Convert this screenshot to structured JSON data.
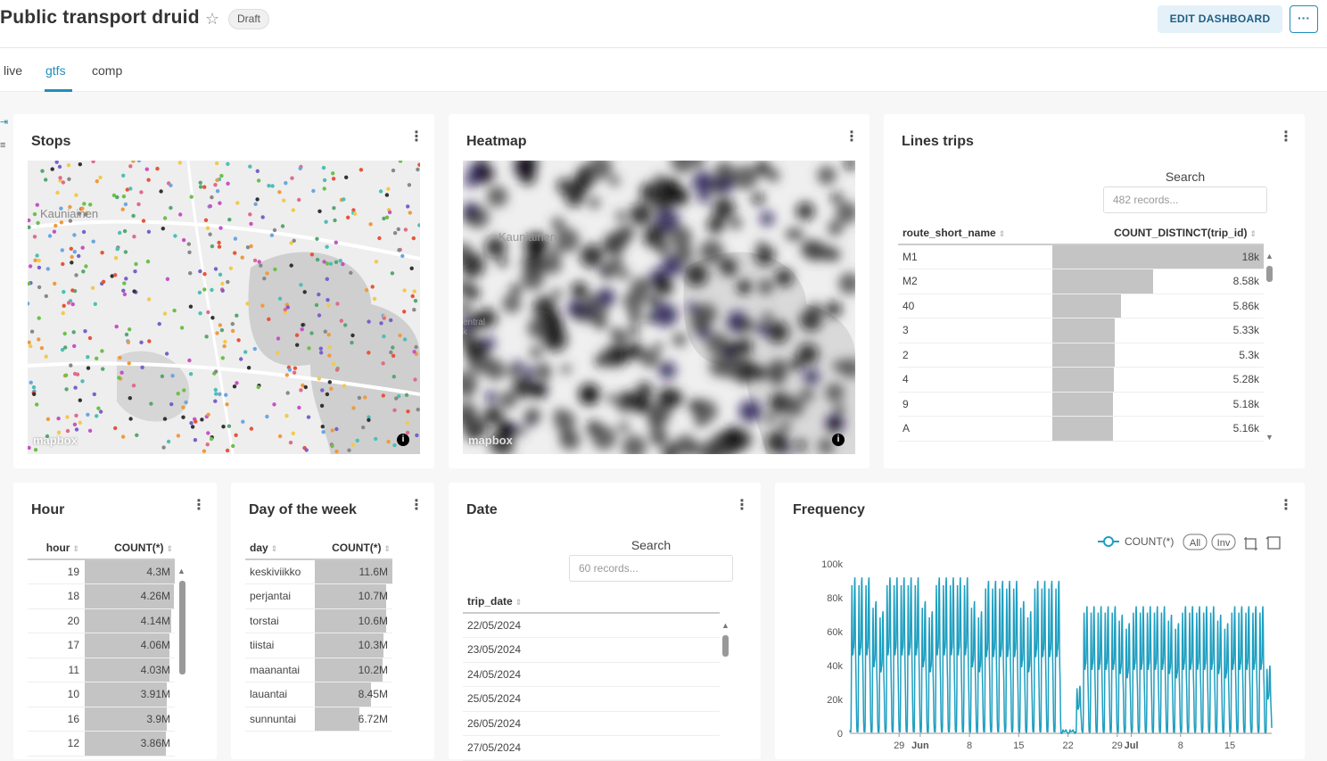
{
  "header": {
    "title": "Public transport druid",
    "status_badge": "Draft",
    "edit_label": "EDIT DASHBOARD",
    "more_label": "···"
  },
  "tabs": [
    {
      "label": "live"
    },
    {
      "label": "gtfs",
      "active": true
    },
    {
      "label": "comp"
    }
  ],
  "stops": {
    "title": "Stops",
    "map_label": "Kauniainen",
    "attribution": "mapbox"
  },
  "heatmap": {
    "title": "Heatmap",
    "map_label": "Kauniainen",
    "map_label2": "entral",
    "map_label3": "k",
    "attribution": "mapbox"
  },
  "lines": {
    "title": "Lines trips",
    "search_label": "Search",
    "search_placeholder": "482 records...",
    "columns": [
      "route_short_name",
      "COUNT_DISTINCT(trip_id)"
    ],
    "rows": [
      {
        "name": "M1",
        "value": "18k",
        "frac": 1.0
      },
      {
        "name": "M2",
        "value": "8.58k",
        "frac": 0.477
      },
      {
        "name": "40",
        "value": "5.86k",
        "frac": 0.326
      },
      {
        "name": "3",
        "value": "5.33k",
        "frac": 0.296
      },
      {
        "name": "2",
        "value": "5.3k",
        "frac": 0.294
      },
      {
        "name": "4",
        "value": "5.28k",
        "frac": 0.293
      },
      {
        "name": "9",
        "value": "5.18k",
        "frac": 0.288
      },
      {
        "name": "A",
        "value": "5.16k",
        "frac": 0.287
      }
    ]
  },
  "hour": {
    "title": "Hour",
    "columns": [
      "hour",
      "COUNT(*)"
    ],
    "rows": [
      {
        "name": "19",
        "value": "4.3M",
        "frac": 1.0
      },
      {
        "name": "18",
        "value": "4.26M",
        "frac": 0.99
      },
      {
        "name": "20",
        "value": "4.14M",
        "frac": 0.963
      },
      {
        "name": "17",
        "value": "4.06M",
        "frac": 0.944
      },
      {
        "name": "11",
        "value": "4.03M",
        "frac": 0.937
      },
      {
        "name": "10",
        "value": "3.91M",
        "frac": 0.909
      },
      {
        "name": "16",
        "value": "3.9M",
        "frac": 0.907
      },
      {
        "name": "12",
        "value": "3.86M",
        "frac": 0.898
      }
    ]
  },
  "dow": {
    "title": "Day of the week",
    "columns": [
      "day",
      "COUNT(*)"
    ],
    "rows": [
      {
        "name": "keskiviikko",
        "value": "11.6M",
        "frac": 1.0
      },
      {
        "name": "perjantai",
        "value": "10.7M",
        "frac": 0.922
      },
      {
        "name": "torstai",
        "value": "10.6M",
        "frac": 0.914
      },
      {
        "name": "tiistai",
        "value": "10.3M",
        "frac": 0.888
      },
      {
        "name": "maanantai",
        "value": "10.2M",
        "frac": 0.879
      },
      {
        "name": "lauantai",
        "value": "8.45M",
        "frac": 0.728
      },
      {
        "name": "sunnuntai",
        "value": "6.72M",
        "frac": 0.579
      }
    ]
  },
  "date": {
    "title": "Date",
    "search_label": "Search",
    "search_placeholder": "60 records...",
    "column": "trip_date",
    "rows": [
      "22/05/2024",
      "23/05/2024",
      "24/05/2024",
      "25/05/2024",
      "26/05/2024",
      "27/05/2024"
    ]
  },
  "frequency": {
    "title": "Frequency",
    "legend_toggles": [
      "All",
      "Inv"
    ]
  },
  "chart_data": {
    "type": "line",
    "title": "Frequency",
    "series_name": "COUNT(*)",
    "color": "#1f9fc0",
    "ylim": [
      0,
      100000
    ],
    "yticks": [
      "100k",
      "80k",
      "60k",
      "40k",
      "20k",
      "0"
    ],
    "xticks": [
      "29",
      "Jun",
      "8",
      "15",
      "22",
      "29",
      "Jul",
      "8",
      "15"
    ],
    "x_range": [
      "2024-05-22",
      "2024-07-20"
    ],
    "daily_peaks": [
      {
        "date": "2024-05-22",
        "peak": 92000
      },
      {
        "date": "2024-05-23",
        "peak": 92000
      },
      {
        "date": "2024-05-24",
        "peak": 92000
      },
      {
        "date": "2024-05-25",
        "peak": 78000
      },
      {
        "date": "2024-05-26",
        "peak": 72000
      },
      {
        "date": "2024-05-27",
        "peak": 92000
      },
      {
        "date": "2024-05-28",
        "peak": 92000
      },
      {
        "date": "2024-05-29",
        "peak": 92000
      },
      {
        "date": "2024-05-30",
        "peak": 92000
      },
      {
        "date": "2024-05-31",
        "peak": 92000
      },
      {
        "date": "2024-06-01",
        "peak": 78000
      },
      {
        "date": "2024-06-02",
        "peak": 72000
      },
      {
        "date": "2024-06-03",
        "peak": 92000
      },
      {
        "date": "2024-06-04",
        "peak": 92000
      },
      {
        "date": "2024-06-05",
        "peak": 92000
      },
      {
        "date": "2024-06-06",
        "peak": 92000
      },
      {
        "date": "2024-06-07",
        "peak": 92000
      },
      {
        "date": "2024-06-08",
        "peak": 78000
      },
      {
        "date": "2024-06-09",
        "peak": 72000
      },
      {
        "date": "2024-06-10",
        "peak": 90000
      },
      {
        "date": "2024-06-11",
        "peak": 90000
      },
      {
        "date": "2024-06-12",
        "peak": 90000
      },
      {
        "date": "2024-06-13",
        "peak": 90000
      },
      {
        "date": "2024-06-14",
        "peak": 90000
      },
      {
        "date": "2024-06-15",
        "peak": 78000
      },
      {
        "date": "2024-06-16",
        "peak": 72000
      },
      {
        "date": "2024-06-17",
        "peak": 90000
      },
      {
        "date": "2024-06-18",
        "peak": 90000
      },
      {
        "date": "2024-06-19",
        "peak": 90000
      },
      {
        "date": "2024-06-20",
        "peak": 90000
      },
      {
        "date": "2024-06-21",
        "peak": 2000
      },
      {
        "date": "2024-06-22",
        "peak": 2000
      },
      {
        "date": "2024-06-23",
        "peak": 28000
      },
      {
        "date": "2024-06-24",
        "peak": 75000
      },
      {
        "date": "2024-06-25",
        "peak": 75000
      },
      {
        "date": "2024-06-26",
        "peak": 75000
      },
      {
        "date": "2024-06-27",
        "peak": 75000
      },
      {
        "date": "2024-06-28",
        "peak": 75000
      },
      {
        "date": "2024-06-29",
        "peak": 70000
      },
      {
        "date": "2024-06-30",
        "peak": 65000
      },
      {
        "date": "2024-07-01",
        "peak": 75000
      },
      {
        "date": "2024-07-02",
        "peak": 75000
      },
      {
        "date": "2024-07-03",
        "peak": 75000
      },
      {
        "date": "2024-07-04",
        "peak": 75000
      },
      {
        "date": "2024-07-05",
        "peak": 75000
      },
      {
        "date": "2024-07-06",
        "peak": 70000
      },
      {
        "date": "2024-07-07",
        "peak": 65000
      },
      {
        "date": "2024-07-08",
        "peak": 75000
      },
      {
        "date": "2024-07-09",
        "peak": 75000
      },
      {
        "date": "2024-07-10",
        "peak": 75000
      },
      {
        "date": "2024-07-11",
        "peak": 75000
      },
      {
        "date": "2024-07-12",
        "peak": 75000
      },
      {
        "date": "2024-07-13",
        "peak": 70000
      },
      {
        "date": "2024-07-14",
        "peak": 65000
      },
      {
        "date": "2024-07-15",
        "peak": 75000
      },
      {
        "date": "2024-07-16",
        "peak": 75000
      },
      {
        "date": "2024-07-17",
        "peak": 75000
      },
      {
        "date": "2024-07-18",
        "peak": 75000
      },
      {
        "date": "2024-07-19",
        "peak": 75000
      },
      {
        "date": "2024-07-20",
        "peak": 40000
      }
    ]
  }
}
